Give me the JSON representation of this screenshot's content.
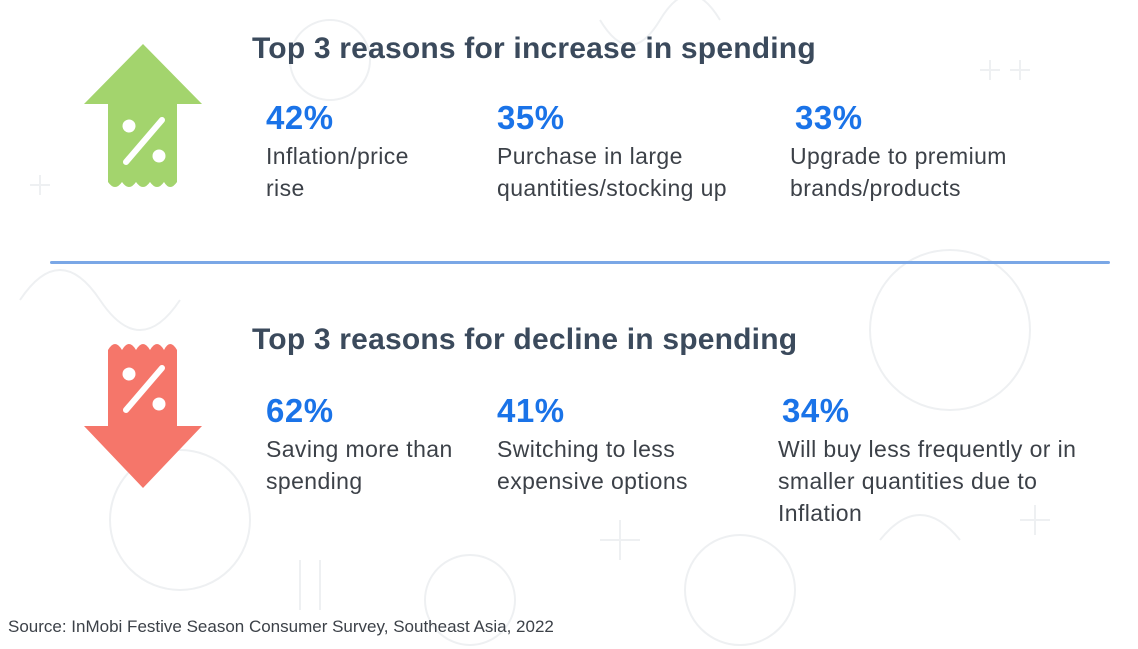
{
  "increase": {
    "title": "Top 3 reasons for increase in spending",
    "icon": "up-arrow-percent-tag-icon",
    "color": "#a3d46d",
    "items": [
      {
        "value": "42%",
        "label": "Inflation/price rise"
      },
      {
        "value": "35%",
        "label": "Purchase in large quantities/stocking up"
      },
      {
        "value": "33%",
        "label": "Upgrade to premium brands/products"
      }
    ]
  },
  "decline": {
    "title": "Top 3 reasons for decline in spending",
    "icon": "down-arrow-percent-tag-icon",
    "color": "#f5766a",
    "items": [
      {
        "value": "62%",
        "label": "Saving more than spending"
      },
      {
        "value": "41%",
        "label": "Switching to less expensive options"
      },
      {
        "value": "34%",
        "label": "Will buy less frequently or in smaller quantities due to Inflation"
      }
    ]
  },
  "source": "Source: InMobi Festive Season Consumer Survey, Southeast Asia, 2022",
  "accent_color": "#1a73e8",
  "divider_color": "#7aa7e6"
}
